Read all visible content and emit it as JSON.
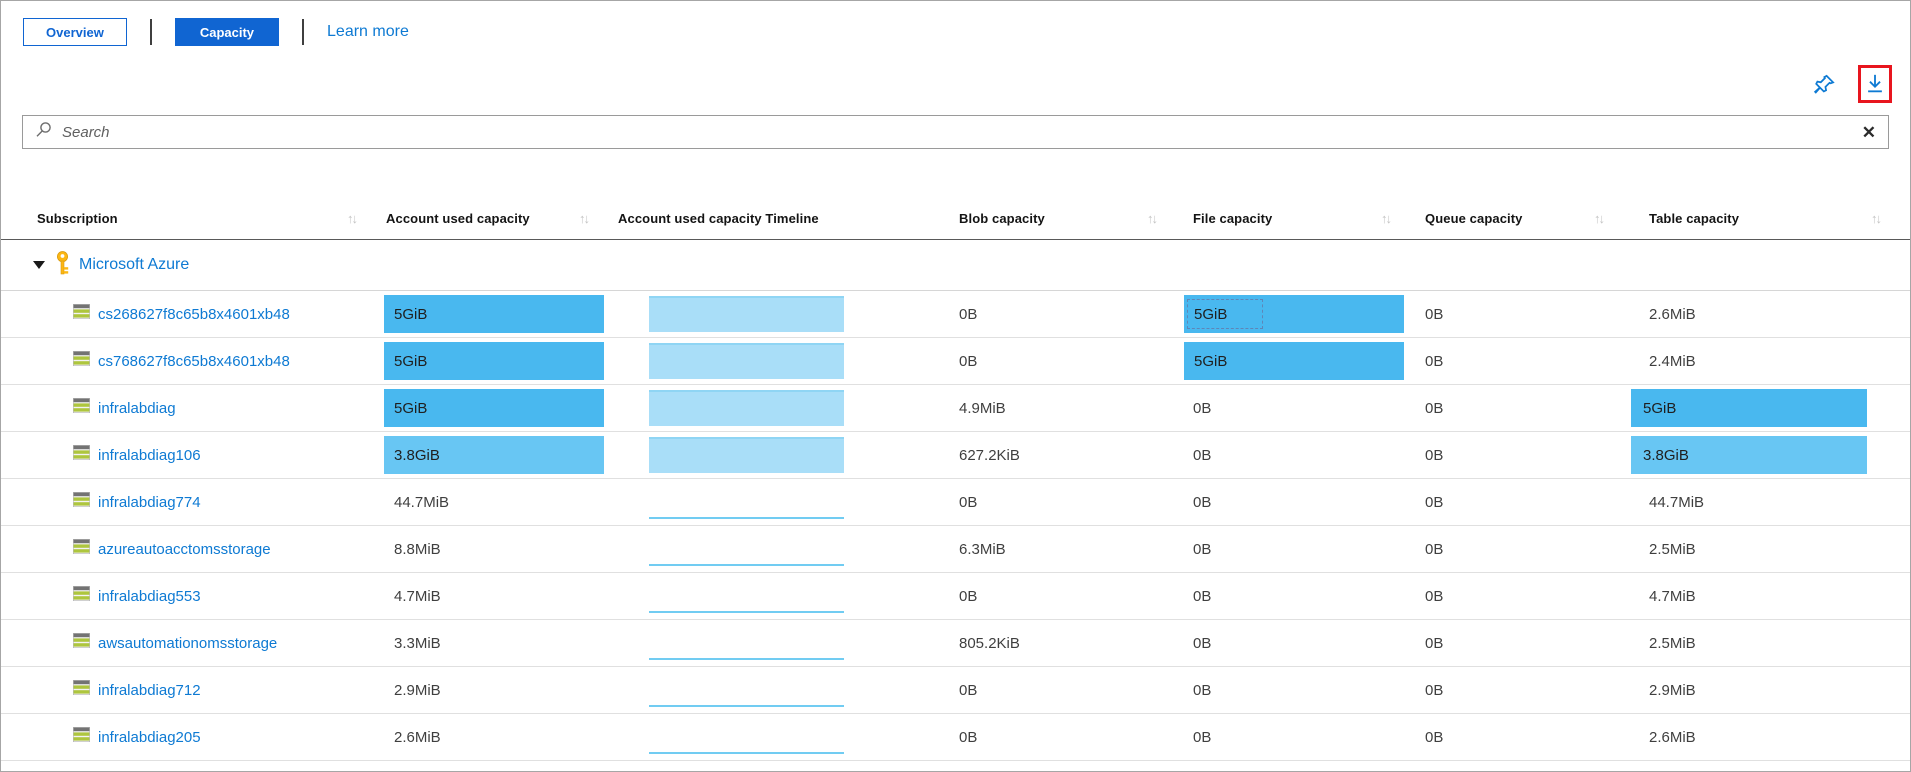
{
  "tabs": {
    "overview": "Overview",
    "capacity": "Capacity",
    "learn_more": "Learn more"
  },
  "toolbar": {
    "pin_icon": "pin-icon",
    "download_icon": "download-icon",
    "download_highlight_color": "#e8151e"
  },
  "search": {
    "placeholder": "Search",
    "clear_icon": "✕"
  },
  "table": {
    "sort_glyph": "↑↓",
    "columns": [
      {
        "label": "Subscription",
        "sortable": true
      },
      {
        "label": "Account used capacity",
        "sortable": true
      },
      {
        "label": "Account used capacity Timeline",
        "sortable": false
      },
      {
        "label": "Blob capacity",
        "sortable": true
      },
      {
        "label": "File capacity",
        "sortable": true
      },
      {
        "label": "Queue capacity",
        "sortable": true
      },
      {
        "label": "Table capacity",
        "sortable": true
      }
    ],
    "group": {
      "label": "Microsoft Azure",
      "expanded": true
    },
    "rows": [
      {
        "name": "cs268627f8c65b8x4601xb48",
        "used": {
          "text": "5GiB",
          "bar": "high"
        },
        "timeline": "full",
        "blob": "0B",
        "file": {
          "text": "5GiB",
          "bar": "high",
          "focused": true
        },
        "queue": "0B",
        "table": {
          "text": "2.6MiB",
          "bar": null
        }
      },
      {
        "name": "cs768627f8c65b8x4601xb48",
        "used": {
          "text": "5GiB",
          "bar": "high"
        },
        "timeline": "full",
        "blob": "0B",
        "file": {
          "text": "5GiB",
          "bar": "high"
        },
        "queue": "0B",
        "table": {
          "text": "2.4MiB",
          "bar": null
        }
      },
      {
        "name": "infralabdiag",
        "used": {
          "text": "5GiB",
          "bar": "high"
        },
        "timeline": "full",
        "blob": "4.9MiB",
        "file": {
          "text": "0B",
          "bar": null
        },
        "queue": "0B",
        "table": {
          "text": "5GiB",
          "bar": "high"
        }
      },
      {
        "name": "infralabdiag106",
        "used": {
          "text": "3.8GiB",
          "bar": "mid"
        },
        "timeline": "full",
        "blob": "627.2KiB",
        "file": {
          "text": "0B",
          "bar": null
        },
        "queue": "0B",
        "table": {
          "text": "3.8GiB",
          "bar": "mid"
        }
      },
      {
        "name": "infralabdiag774",
        "used": {
          "text": "44.7MiB",
          "bar": null
        },
        "timeline": "line",
        "blob": "0B",
        "file": {
          "text": "0B",
          "bar": null
        },
        "queue": "0B",
        "table": {
          "text": "44.7MiB",
          "bar": null
        }
      },
      {
        "name": "azureautoacctomsstorage",
        "used": {
          "text": "8.8MiB",
          "bar": null
        },
        "timeline": "line",
        "blob": "6.3MiB",
        "file": {
          "text": "0B",
          "bar": null
        },
        "queue": "0B",
        "table": {
          "text": "2.5MiB",
          "bar": null
        }
      },
      {
        "name": "infralabdiag553",
        "used": {
          "text": "4.7MiB",
          "bar": null
        },
        "timeline": "line",
        "blob": "0B",
        "file": {
          "text": "0B",
          "bar": null
        },
        "queue": "0B",
        "table": {
          "text": "4.7MiB",
          "bar": null
        }
      },
      {
        "name": "awsautomationomsstorage",
        "used": {
          "text": "3.3MiB",
          "bar": null
        },
        "timeline": "line",
        "blob": "805.2KiB",
        "file": {
          "text": "0B",
          "bar": null
        },
        "queue": "0B",
        "table": {
          "text": "2.5MiB",
          "bar": null
        }
      },
      {
        "name": "infralabdiag712",
        "used": {
          "text": "2.9MiB",
          "bar": null
        },
        "timeline": "line",
        "blob": "0B",
        "file": {
          "text": "0B",
          "bar": null
        },
        "queue": "0B",
        "table": {
          "text": "2.9MiB",
          "bar": null
        }
      },
      {
        "name": "infralabdiag205",
        "used": {
          "text": "2.6MiB",
          "bar": null
        },
        "timeline": "line",
        "blob": "0B",
        "file": {
          "text": "0B",
          "bar": null
        },
        "queue": "0B",
        "table": {
          "text": "2.6MiB",
          "bar": null
        }
      }
    ]
  },
  "colors": {
    "bar_high": "#49b8ef",
    "bar_mid": "#68c6f3",
    "timeline_fill": "#a9def8",
    "timeline_line": "#71ccf2",
    "link_blue": "#0e7ad3",
    "button_blue": "#1065d2",
    "highlight_red": "#e8151e",
    "key_gold": "#fcb714"
  }
}
